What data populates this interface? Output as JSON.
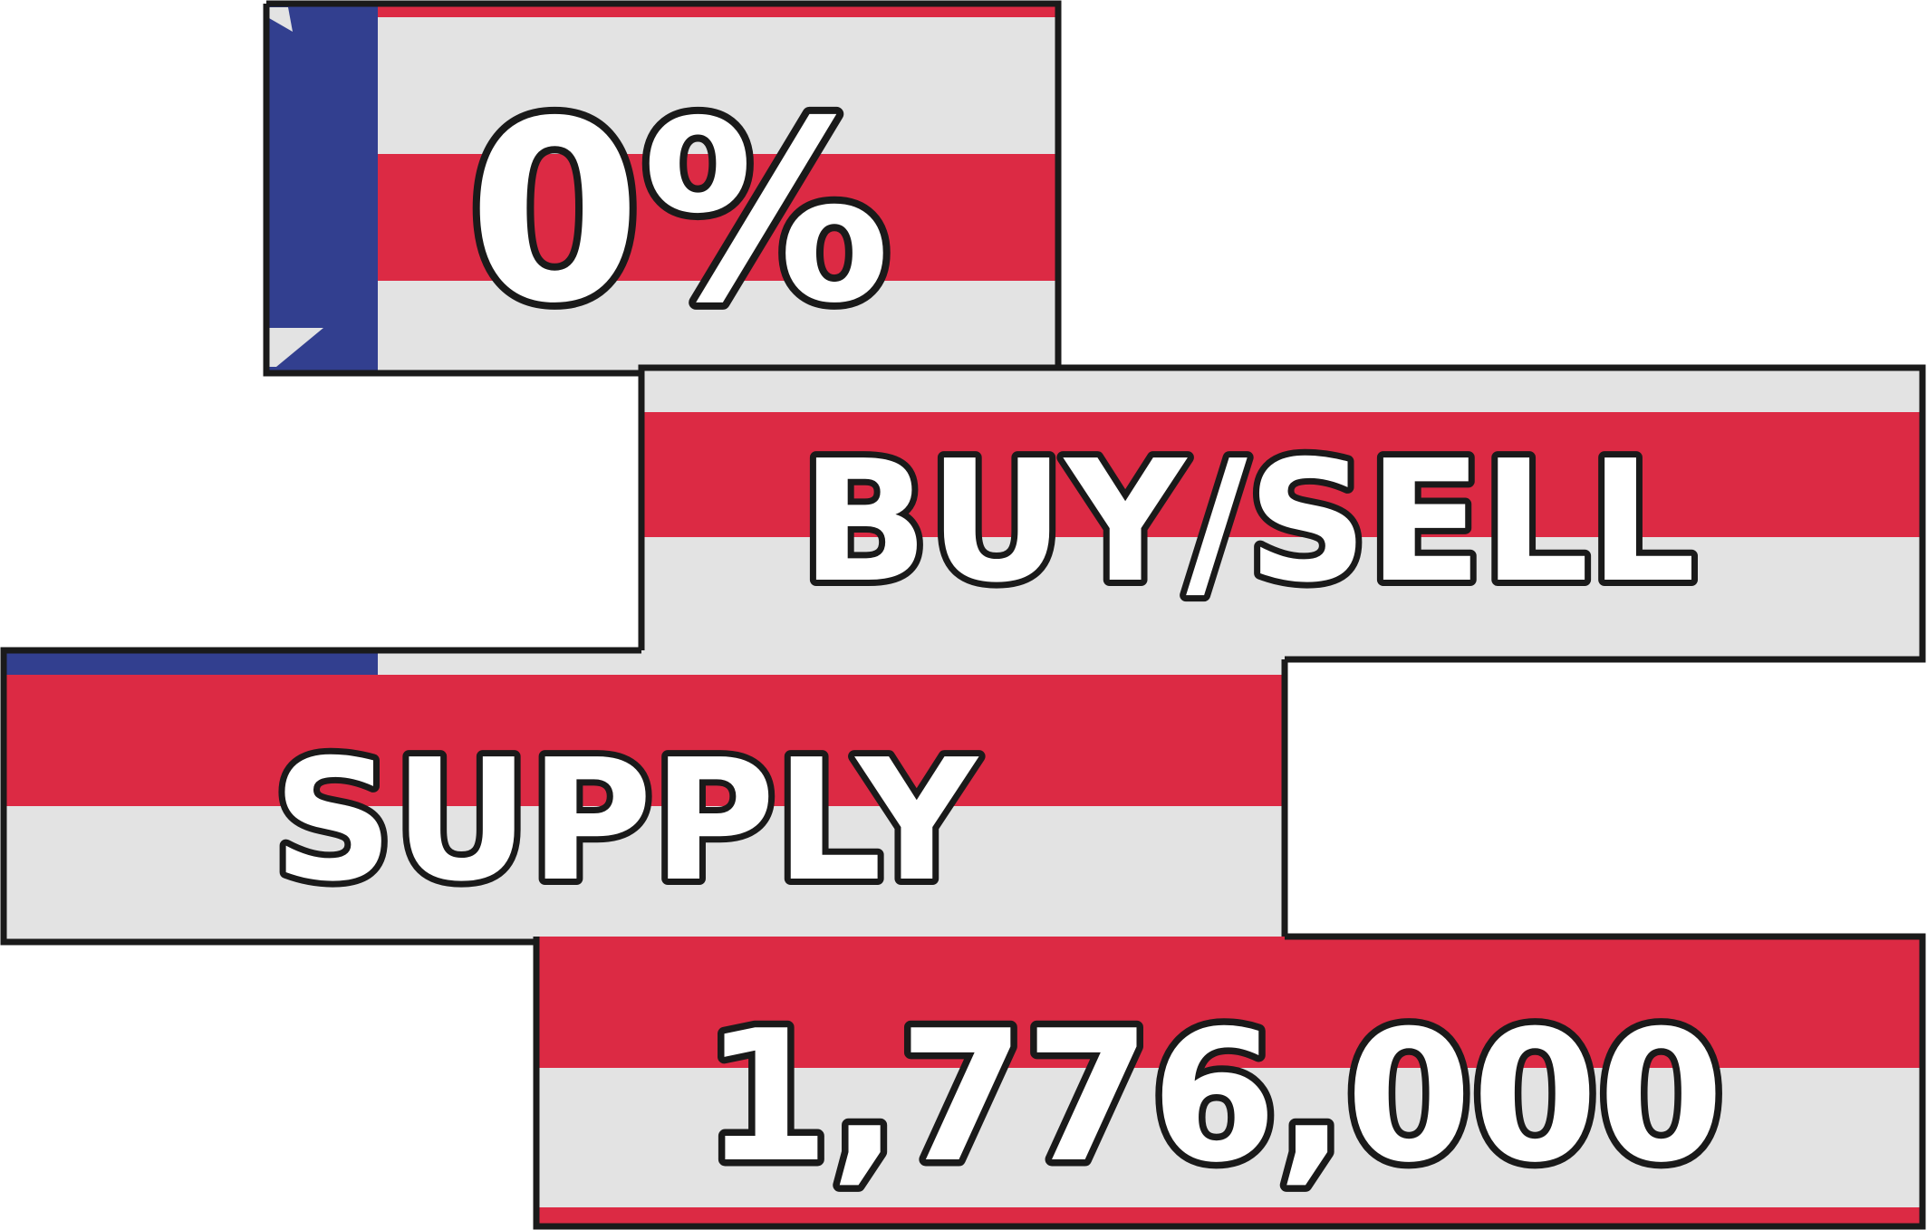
{
  "colors": {
    "red": "#dc2a44",
    "light_gray": "#e3e3e3",
    "blue": "#323f8f",
    "outline": "#1a1a1a",
    "text_fill": "#ffffff"
  },
  "banners": [
    {
      "text": "0%"
    },
    {
      "text": "BUY/SELL"
    },
    {
      "text": "SUPPLY"
    },
    {
      "text": "1,776,000"
    }
  ]
}
